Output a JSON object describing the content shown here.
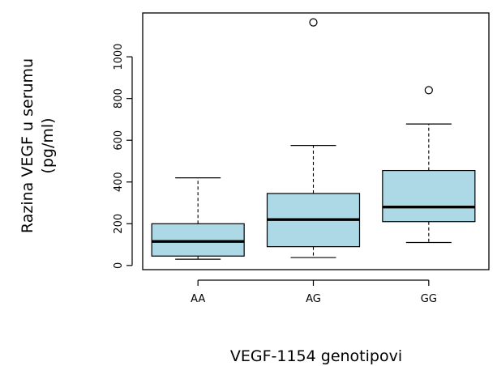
{
  "chart_data": {
    "type": "box",
    "xlabel": "VEGF-1154 genotipovi",
    "ylabel_lines": [
      "Razina VEGF u serumu",
      "(pg/ml)"
    ],
    "categories": [
      "AA",
      "AG",
      "GG"
    ],
    "ylim": [
      -20,
      1210
    ],
    "yticks": [
      0,
      200,
      400,
      600,
      800,
      1000
    ],
    "box_color": "#add8e6",
    "grid": false,
    "boxes": [
      {
        "category": "AA",
        "whisker_low": 30,
        "q1": 45,
        "median": 115,
        "q3": 200,
        "whisker_high": 420,
        "outliers": []
      },
      {
        "category": "AG",
        "whisker_low": 38,
        "q1": 90,
        "median": 220,
        "q3": 345,
        "whisker_high": 575,
        "outliers": [
          1165
        ]
      },
      {
        "category": "GG",
        "whisker_low": 110,
        "q1": 210,
        "median": 280,
        "q3": 455,
        "whisker_high": 678,
        "outliers": [
          840
        ]
      }
    ]
  }
}
